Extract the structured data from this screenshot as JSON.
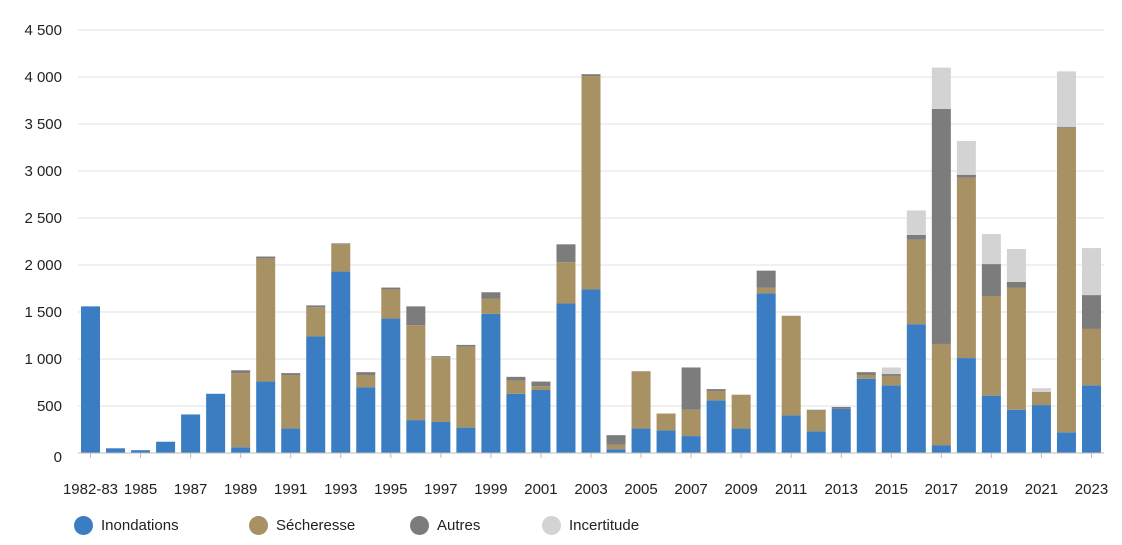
{
  "chart_data": {
    "type": "bar",
    "stacked": true,
    "categories": [
      "1982-83",
      "1984",
      "1985",
      "1986",
      "1987",
      "1988",
      "1989",
      "1990",
      "1991",
      "1992",
      "1993",
      "1994",
      "1995",
      "1996",
      "1997",
      "1998",
      "1999",
      "2000",
      "2001",
      "2002",
      "2003",
      "2004",
      "2005",
      "2006",
      "2007",
      "2008",
      "2009",
      "2010",
      "2011",
      "2012",
      "2013",
      "2014",
      "2015",
      "2016",
      "2017",
      "2018",
      "2019",
      "2020",
      "2021",
      "2022",
      "2023"
    ],
    "x_tick_labels": [
      "1982-83",
      "1985",
      "1987",
      "1989",
      "1991",
      "1993",
      "1995",
      "1997",
      "1999",
      "2001",
      "2003",
      "2005",
      "2007",
      "2009",
      "2011",
      "2013",
      "2015",
      "2017",
      "2019",
      "2021",
      "2023"
    ],
    "series": [
      {
        "name": "Inondations",
        "color": "#3a7dc2",
        "values": [
          1560,
          50,
          30,
          120,
          410,
          630,
          60,
          760,
          260,
          1240,
          1930,
          700,
          1430,
          350,
          330,
          270,
          1480,
          630,
          670,
          1590,
          1740,
          40,
          260,
          240,
          180,
          560,
          260,
          1700,
          400,
          230,
          470,
          790,
          720,
          1370,
          80,
          1010,
          610,
          460,
          510,
          220,
          720
        ]
      },
      {
        "name": "Sécheresse",
        "color": "#a89163",
        "values": [
          0,
          0,
          0,
          0,
          0,
          0,
          790,
          1310,
          570,
          310,
          290,
          130,
          310,
          1010,
          690,
          860,
          160,
          140,
          40,
          440,
          2270,
          50,
          610,
          180,
          280,
          100,
          360,
          60,
          1060,
          220,
          0,
          40,
          100,
          900,
          1080,
          1920,
          1060,
          1300,
          140,
          3240,
          600
        ]
      },
      {
        "name": "Autres",
        "color": "#7c7c7c",
        "values": [
          0,
          0,
          0,
          0,
          0,
          0,
          30,
          20,
          20,
          20,
          10,
          30,
          20,
          200,
          10,
          20,
          70,
          40,
          50,
          190,
          20,
          100,
          0,
          0,
          450,
          20,
          0,
          180,
          0,
          10,
          20,
          30,
          20,
          50,
          2500,
          30,
          340,
          60,
          0,
          10,
          360
        ]
      },
      {
        "name": "Incertitude",
        "color": "#d3d3d3",
        "values": [
          0,
          0,
          0,
          0,
          0,
          0,
          0,
          0,
          0,
          0,
          0,
          0,
          0,
          0,
          0,
          0,
          0,
          0,
          0,
          0,
          0,
          0,
          0,
          0,
          0,
          0,
          0,
          0,
          0,
          0,
          0,
          0,
          70,
          260,
          440,
          360,
          320,
          350,
          40,
          590,
          500
        ]
      }
    ],
    "ylim": [
      0,
      4500
    ],
    "y_ticks": [
      0,
      500,
      1000,
      1500,
      2000,
      2500,
      3000,
      3500,
      4000,
      4500
    ],
    "y_tick_labels": [
      "0",
      "500",
      "1 000",
      "1 500",
      "2 000",
      "2 500",
      "3 000",
      "3 500",
      "4 000",
      "4 500"
    ],
    "grid": "horizontal",
    "legend_position": "bottom-left",
    "title": "",
    "xlabel": "",
    "ylabel": ""
  }
}
